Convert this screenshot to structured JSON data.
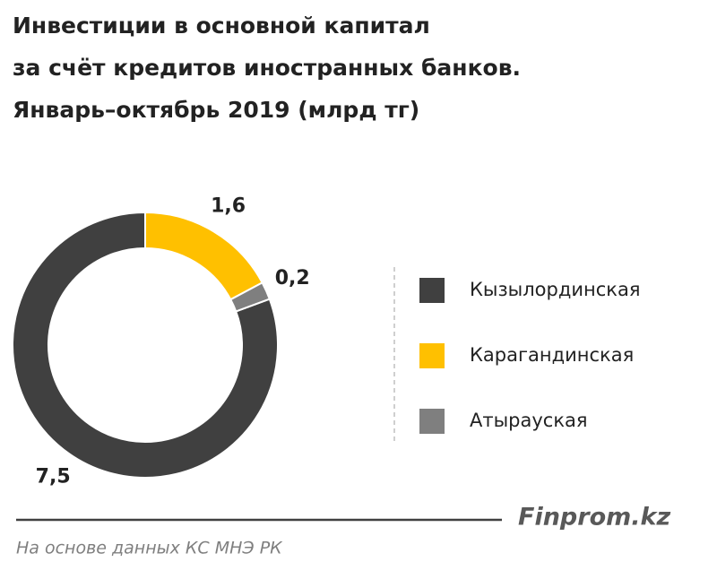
{
  "chart_data": {
    "type": "donut",
    "title": [
      "Инвестиции в основной капитал",
      "за счёт кредитов иностранных банков.",
      "Январь–октябрь 2019  (млрд тг)"
    ],
    "categories": [
      "Кызылординская",
      "Карагандинская",
      "Атырауская"
    ],
    "values": [
      7.5,
      1.6,
      0.2
    ],
    "value_labels": [
      "7,5",
      "1,6",
      "0,2"
    ],
    "colors": [
      "#404040",
      "#ffc000",
      "#7f7f7f"
    ],
    "legend": "right",
    "brand": "Finprom.kz",
    "source": "На основе данных КС МНЭ РК"
  }
}
